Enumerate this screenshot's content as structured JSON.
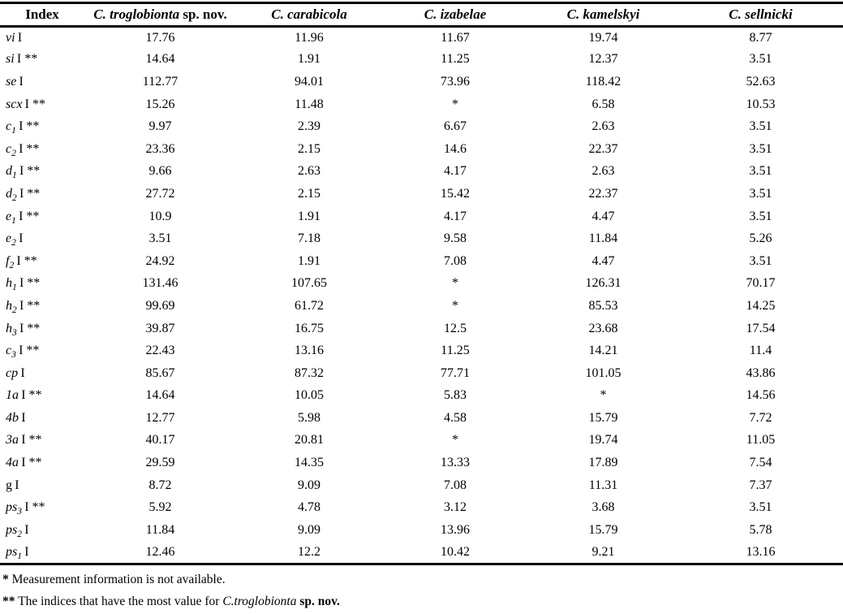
{
  "table": {
    "unit_suffix": "I",
    "stars_marker": "**",
    "na_marker": "*",
    "columns": [
      {
        "italic": "",
        "roman": "Index"
      },
      {
        "italic": "C. troglobionta",
        "roman": " sp. nov."
      },
      {
        "italic": "C. carabicola",
        "roman": ""
      },
      {
        "italic": "C. izabelae",
        "roman": ""
      },
      {
        "italic": "C. kamelskyi",
        "roman": ""
      },
      {
        "italic": "C. sellnicki",
        "roman": ""
      }
    ],
    "rows": [
      {
        "base": "vi",
        "sub": "",
        "roman": false,
        "stars": false,
        "values": [
          "17.76",
          "11.96",
          "11.67",
          "19.74",
          "8.77"
        ]
      },
      {
        "base": "si",
        "sub": "",
        "roman": false,
        "stars": true,
        "values": [
          "14.64",
          "1.91",
          "11.25",
          "12.37",
          "3.51"
        ]
      },
      {
        "base": "se",
        "sub": "",
        "roman": false,
        "stars": false,
        "values": [
          "112.77",
          "94.01",
          "73.96",
          "118.42",
          "52.63"
        ]
      },
      {
        "base": "scx",
        "sub": "",
        "roman": false,
        "stars": true,
        "values": [
          "15.26",
          "11.48",
          "*",
          "6.58",
          "10.53"
        ]
      },
      {
        "base": "c",
        "sub": "1",
        "roman": false,
        "stars": true,
        "values": [
          "9.97",
          "2.39",
          "6.67",
          "2.63",
          "3.51"
        ]
      },
      {
        "base": "c",
        "sub": "2",
        "roman": false,
        "stars": true,
        "values": [
          "23.36",
          "2.15",
          "14.6",
          "22.37",
          "3.51"
        ]
      },
      {
        "base": "d",
        "sub": "1",
        "roman": false,
        "stars": true,
        "values": [
          "9.66",
          "2.63",
          "4.17",
          "2.63",
          "3.51"
        ]
      },
      {
        "base": "d",
        "sub": "2",
        "roman": false,
        "stars": true,
        "values": [
          "27.72",
          "2.15",
          "15.42",
          "22.37",
          "3.51"
        ]
      },
      {
        "base": "e",
        "sub": "1",
        "roman": false,
        "stars": true,
        "values": [
          "10.9",
          "1.91",
          "4.17",
          "4.47",
          "3.51"
        ]
      },
      {
        "base": "e",
        "sub": "2",
        "roman": false,
        "stars": false,
        "values": [
          "3.51",
          "7.18",
          "9.58",
          "11.84",
          "5.26"
        ]
      },
      {
        "base": "f",
        "sub": "2",
        "roman": false,
        "stars": true,
        "values": [
          "24.92",
          "1.91",
          "7.08",
          "4.47",
          "3.51"
        ]
      },
      {
        "base": "h",
        "sub": "1",
        "roman": false,
        "stars": true,
        "values": [
          "131.46",
          "107.65",
          "*",
          "126.31",
          "70.17"
        ]
      },
      {
        "base": "h",
        "sub": "2",
        "roman": false,
        "stars": true,
        "values": [
          "99.69",
          "61.72",
          "*",
          "85.53",
          "14.25"
        ]
      },
      {
        "base": "h",
        "sub": "3",
        "roman": false,
        "stars": true,
        "values": [
          "39.87",
          "16.75",
          "12.5",
          "23.68",
          "17.54"
        ]
      },
      {
        "base": "c",
        "sub": "3",
        "roman": false,
        "stars": true,
        "values": [
          "22.43",
          "13.16",
          "11.25",
          "14.21",
          "11.4"
        ]
      },
      {
        "base": "cp",
        "sub": "",
        "roman": false,
        "stars": false,
        "values": [
          "85.67",
          "87.32",
          "77.71",
          "101.05",
          "43.86"
        ]
      },
      {
        "base": "1a",
        "sub": "",
        "roman": false,
        "stars": true,
        "values": [
          "14.64",
          "10.05",
          "5.83",
          "*",
          "14.56"
        ]
      },
      {
        "base": "4b",
        "sub": "",
        "roman": false,
        "stars": false,
        "values": [
          "12.77",
          "5.98",
          "4.58",
          "15.79",
          "7.72"
        ]
      },
      {
        "base": "3a",
        "sub": "",
        "roman": false,
        "stars": true,
        "values": [
          "40.17",
          "20.81",
          "*",
          "19.74",
          "11.05"
        ]
      },
      {
        "base": "4a",
        "sub": "",
        "roman": false,
        "stars": true,
        "values": [
          "29.59",
          "14.35",
          "13.33",
          "17.89",
          "7.54"
        ]
      },
      {
        "base": "g",
        "sub": "",
        "roman": true,
        "stars": false,
        "values": [
          "8.72",
          "9.09",
          "7.08",
          "11.31",
          "7.37"
        ]
      },
      {
        "base": "ps",
        "sub": "3",
        "roman": false,
        "stars": true,
        "values": [
          "5.92",
          "4.78",
          "3.12",
          "3.68",
          "3.51"
        ]
      },
      {
        "base": "ps",
        "sub": "2",
        "roman": false,
        "stars": false,
        "values": [
          "11.84",
          "9.09",
          "13.96",
          "15.79",
          "5.78"
        ]
      },
      {
        "base": "ps",
        "sub": "1",
        "roman": false,
        "stars": false,
        "values": [
          "12.46",
          "12.2",
          "10.42",
          "9.21",
          "13.16"
        ]
      }
    ]
  },
  "footnotes": {
    "note1_marker": "*",
    "note1_text": " Measurement information is not available.",
    "note2_marker": "**",
    "note2_text": " The indices that have the most value for ",
    "note2_italic": "C.troglobionta",
    "note2_bold": " sp. nov."
  }
}
